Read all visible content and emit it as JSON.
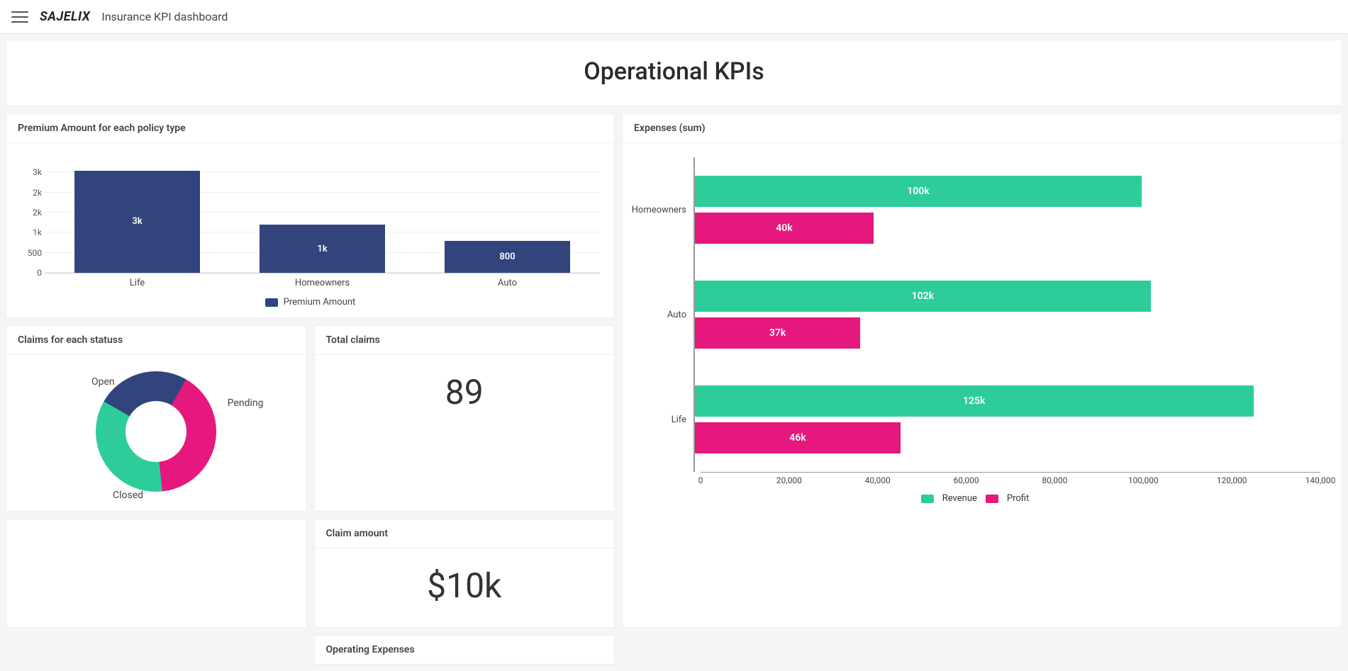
{
  "header": {
    "logo_text": "SAJELIX",
    "page_title": "Insurance KPI dashboard"
  },
  "hero": {
    "title": "Operational KPIs"
  },
  "premium_chart": {
    "type": "bar",
    "title": "Premium Amount for each policy type",
    "legend_label": "Premium Amount",
    "bar_color": "#31457c",
    "ymax": 3000,
    "yticks": [
      {
        "v": 0,
        "lbl": "0"
      },
      {
        "v": 500,
        "lbl": "500"
      },
      {
        "v": 1000,
        "lbl": "1k"
      },
      {
        "v": 1500,
        "lbl": "2k"
      },
      {
        "v": 2000,
        "lbl": "2k"
      },
      {
        "v": 2500,
        "lbl": "3k"
      }
    ],
    "series": [
      {
        "cat": "Life",
        "val": 2550,
        "lbl": "3k"
      },
      {
        "cat": "Homeowners",
        "val": 1200,
        "lbl": "1k"
      },
      {
        "cat": "Auto",
        "val": 800,
        "lbl": "800"
      }
    ]
  },
  "claims_donut": {
    "type": "donut",
    "title": "Claims for each statuss",
    "slices": [
      {
        "name": "Open",
        "value": 25,
        "color": "#31457c"
      },
      {
        "name": "Pending",
        "value": 40,
        "color": "#e6177d"
      },
      {
        "name": "Closed",
        "value": 35,
        "color": "#2ecc9a"
      }
    ]
  },
  "total_claims": {
    "title": "Total claims",
    "value": "89"
  },
  "claim_amount": {
    "title": "Claim amount",
    "value": "$10k"
  },
  "operating_expenses": {
    "title": "Operating Expenses"
  },
  "expenses_chart": {
    "type": "grouped-hbar",
    "title": "Expenses (sum)",
    "xmax": 140000,
    "xticks": [
      0,
      20000,
      40000,
      60000,
      80000,
      100000,
      120000,
      140000
    ],
    "series": [
      {
        "name": "Revenue",
        "color": "#2ecc9a"
      },
      {
        "name": "Profit",
        "color": "#e6177d"
      }
    ],
    "groups": [
      {
        "cat": "Homeowners",
        "revenue": {
          "v": 100000,
          "lbl": "100k"
        },
        "profit": {
          "v": 40000,
          "lbl": "40k"
        }
      },
      {
        "cat": "Auto",
        "revenue": {
          "v": 102000,
          "lbl": "102k"
        },
        "profit": {
          "v": 37000,
          "lbl": "37k"
        }
      },
      {
        "cat": "Life",
        "revenue": {
          "v": 125000,
          "lbl": "125k"
        },
        "profit": {
          "v": 46000,
          "lbl": "46k"
        }
      }
    ]
  },
  "colors": {
    "navy": "#31457c",
    "pink": "#e6177d",
    "teal": "#2ecc9a",
    "grid": "#eeeeee",
    "axis": "#999999",
    "text": "#333333",
    "bg": "#ffffff"
  }
}
